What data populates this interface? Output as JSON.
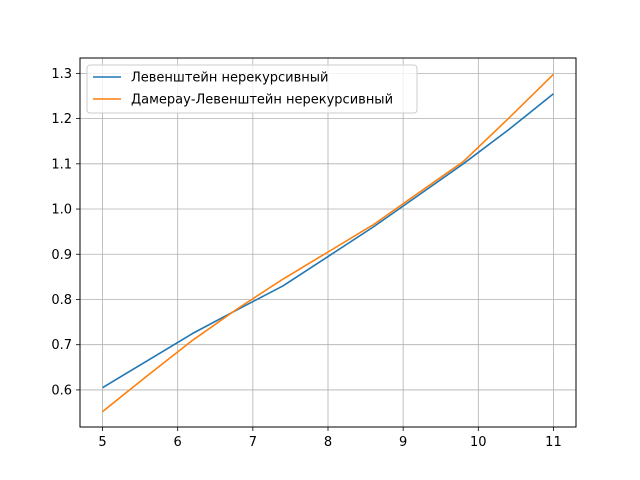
{
  "chart_data": {
    "type": "line",
    "title": "",
    "xlabel": "",
    "ylabel": "",
    "xlim": [
      4.7,
      11.3
    ],
    "ylim": [
      0.518,
      1.334
    ],
    "xticks": [
      5,
      6,
      7,
      8,
      9,
      10,
      11
    ],
    "yticks": [
      0.6,
      0.7,
      0.8,
      0.9,
      1.0,
      1.1,
      1.2,
      1.3
    ],
    "ytick_labels": [
      "0.6",
      "0.7",
      "0.8",
      "0.9",
      "1.0",
      "1.1",
      "1.2",
      "1.3"
    ],
    "grid": true,
    "legend_position": "top-left",
    "series": [
      {
        "name": "Левенштейн нерекурсивный",
        "color": "#1f77b4",
        "x": [
          5.0,
          5.6,
          6.2,
          6.8,
          7.4,
          8.0,
          8.6,
          9.2,
          9.8,
          10.4,
          11.0
        ],
        "y": [
          0.605,
          0.665,
          0.725,
          0.778,
          0.83,
          0.895,
          0.96,
          1.03,
          1.1,
          1.175,
          1.255
        ]
      },
      {
        "name": "Дамерау-Левенштейн нерекурсивный",
        "color": "#ff7f0e",
        "x": [
          5.0,
          5.6,
          6.2,
          6.8,
          7.4,
          8.0,
          8.6,
          9.2,
          9.8,
          10.4,
          11.0
        ],
        "y": [
          0.552,
          0.632,
          0.71,
          0.78,
          0.845,
          0.905,
          0.965,
          1.035,
          1.105,
          1.2,
          1.298
        ]
      }
    ]
  }
}
